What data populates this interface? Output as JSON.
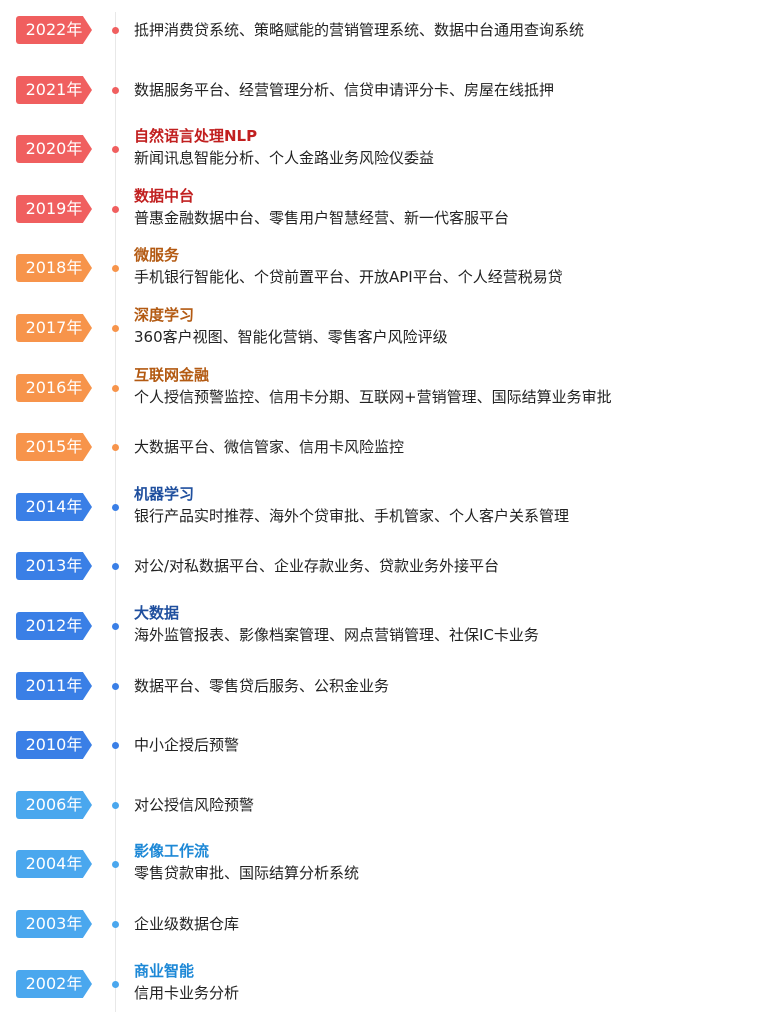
{
  "colors": {
    "red": "#f05f5f",
    "orange": "#f7944b",
    "blue": "#3a7fe6",
    "lightblue": "#4aa7ee",
    "title_red": "#c11f1f",
    "title_orange": "#b35a12",
    "title_blue": "#1f4f9e",
    "title_lightblue": "#1d88d6"
  },
  "timeline": [
    {
      "year": "2022年",
      "color": "red",
      "title": "",
      "desc": "抵押消费贷系统、策略赋能的营销管理系统、数据中台通用查询系统"
    },
    {
      "year": "2021年",
      "color": "red",
      "title": "",
      "desc": "数据服务平台、经营管理分析、信贷申请评分卡、房屋在线抵押"
    },
    {
      "year": "2020年",
      "color": "red",
      "title": "自然语言处理NLP",
      "desc": "新闻讯息智能分析、个人金路业务风险仪委益"
    },
    {
      "year": "2019年",
      "color": "red",
      "title": "数据中台",
      "desc": "普惠金融数据中台、零售用户智慧经营、新一代客服平台"
    },
    {
      "year": "2018年",
      "color": "orange",
      "title": "微服务",
      "desc": "手机银行智能化、个贷前置平台、开放API平台、个人经营税易贷"
    },
    {
      "year": "2017年",
      "color": "orange",
      "title": "深度学习",
      "desc": "360客户视图、智能化营销、零售客户风险评级"
    },
    {
      "year": "2016年",
      "color": "orange",
      "title": "互联网金融",
      "desc": "个人授信预警监控、信用卡分期、互联网+营销管理、国际结算业务审批"
    },
    {
      "year": "2015年",
      "color": "orange",
      "title": "",
      "desc": "大数据平台、微信管家、信用卡风险监控"
    },
    {
      "year": "2014年",
      "color": "blue",
      "title": "机器学习",
      "desc": "银行产品实时推荐、海外个贷审批、手机管家、个人客户关系管理"
    },
    {
      "year": "2013年",
      "color": "blue",
      "title": "",
      "desc": "对公/对私数据平台、企业存款业务、贷款业务外接平台"
    },
    {
      "year": "2012年",
      "color": "blue",
      "title": "大数据",
      "desc": "海外监管报表、影像档案管理、网点营销管理、社保IC卡业务"
    },
    {
      "year": "2011年",
      "color": "blue",
      "title": "",
      "desc": "数据平台、零售贷后服务、公积金业务"
    },
    {
      "year": "2010年",
      "color": "blue",
      "title": "",
      "desc": "中小企授后预警"
    },
    {
      "year": "2006年",
      "color": "lightblue",
      "title": "",
      "desc": "对公授信风险预警"
    },
    {
      "year": "2004年",
      "color": "lightblue",
      "title": "影像工作流",
      "desc": "零售贷款审批、国际结算分析系统"
    },
    {
      "year": "2003年",
      "color": "lightblue",
      "title": "",
      "desc": "企业级数据仓库"
    },
    {
      "year": "2002年",
      "color": "lightblue",
      "title": "商业智能",
      "desc": "信用卡业务分析"
    }
  ]
}
